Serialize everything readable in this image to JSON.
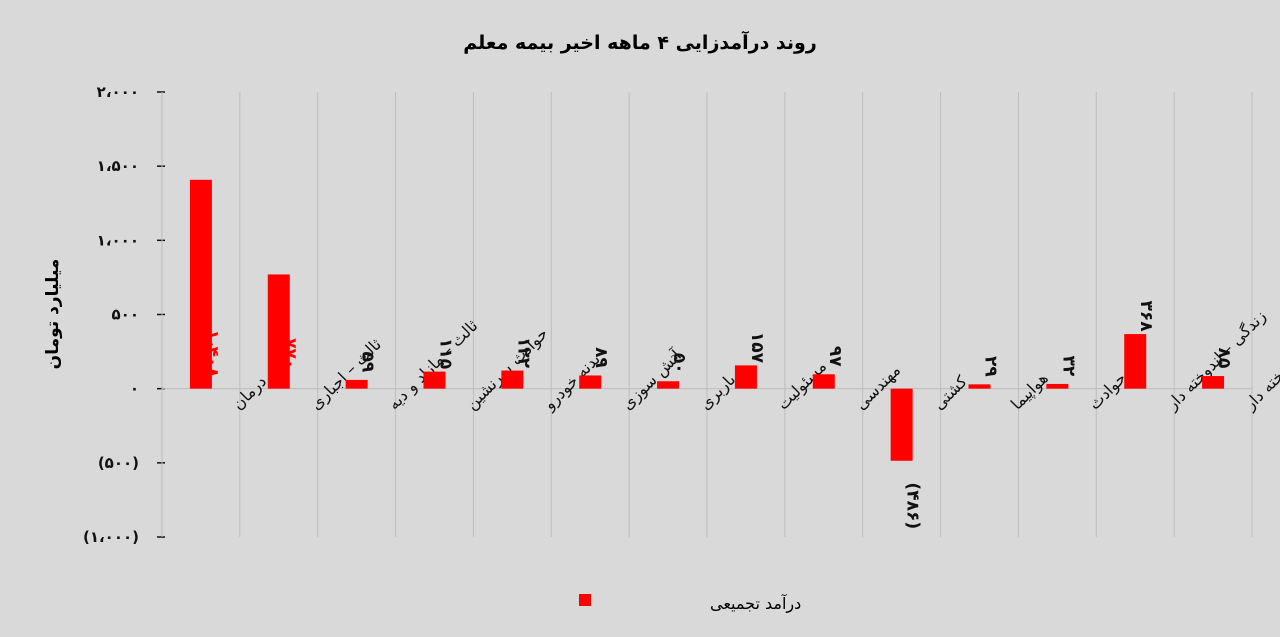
{
  "chart_data": {
    "type": "bar",
    "title": "روند درآمدزایی ۴ ماهه اخیر بیمه معلم",
    "ylabel": "میلیارد تومان",
    "xlabel": "",
    "ylim": [
      -1000,
      2000
    ],
    "yticks": [
      {
        "value": 2000,
        "label": "۲،۰۰۰"
      },
      {
        "value": 1500,
        "label": "۱،۵۰۰"
      },
      {
        "value": 1000,
        "label": "۱،۰۰۰"
      },
      {
        "value": 500,
        "label": "۵۰۰"
      },
      {
        "value": 0,
        "label": "۰"
      },
      {
        "value": -500,
        "label": "(۵۰۰)"
      },
      {
        "value": -1000,
        "label": "(۱،۰۰۰)"
      }
    ],
    "categories": [
      "درمان",
      "ثالث – اجباری",
      "ثالث – مازاد و دیه",
      "حوادث سرنشین",
      "بدنه خودرو",
      "آتش سوزی",
      "باربری",
      "مسئولیت",
      "مهندسی",
      "کشتی",
      "هواپیما",
      "حوادث",
      "زندگی – اندوخته دار",
      "زندگی – غیر اندوخته دار"
    ],
    "series": [
      {
        "name": "درآمد تجمیعی",
        "color": "#ff0000",
        "values": [
          1408,
          770,
          59,
          115,
          122,
          89,
          50,
          157,
          97,
          -486,
          29,
          32,
          368,
          85
        ],
        "labels": [
          "۱،۴۰۸",
          "۷۷۰",
          "۵۹",
          "۱۱۵",
          "۱۲۲",
          "۸۹",
          "۵۰",
          "۱۵۷",
          "۹۷",
          "(۴۸۶)",
          "۲۹",
          "۳۲",
          "۳۶۸",
          "۸۵"
        ]
      }
    ],
    "legend_position": "bottom",
    "grid": true
  }
}
